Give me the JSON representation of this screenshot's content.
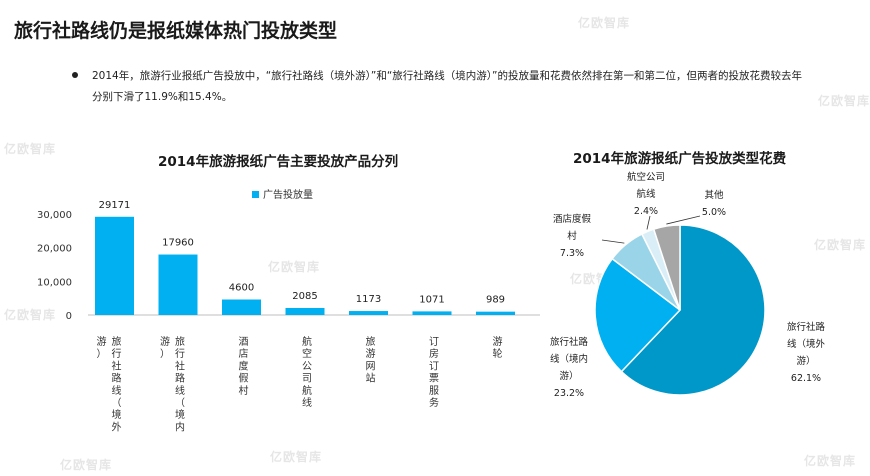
{
  "page": {
    "title": "旅行社路线仍是报纸媒体热门投放类型",
    "bullet": "2014年，旅游行业报纸广告投放中，“旅行社路线（境外游）”和“旅行社路线（境内游）”的投放量和花费依然排在第一和第二位，但两者的投放花费较去年分别下滑了11.9%和15.4%。",
    "accent_color": "#00b0f0"
  },
  "chart_data": [
    {
      "type": "bar",
      "title": "2014年旅游报纸广告主要投放产品分列",
      "legend": "广告投放量",
      "legend_position": "top",
      "categories": [
        "旅行社路线（境外游）",
        "旅行社路线（境内游）",
        "酒店度假村",
        "航空公司航线",
        "旅游网站",
        "订房订票服务",
        "游轮"
      ],
      "category_lines": [
        [
          "旅行社路线（境外",
          "游）"
        ],
        [
          "旅行社路线（境内",
          "游）"
        ],
        [
          "酒店度假村"
        ],
        [
          "航空公司航线"
        ],
        [
          "旅游网站"
        ],
        [
          "订房订票服务"
        ],
        [
          "游轮"
        ]
      ],
      "values": [
        29171,
        17960,
        4600,
        2085,
        1173,
        1071,
        989
      ],
      "value_labels": [
        "29171",
        "17960",
        "4600",
        "2085",
        "1173",
        "1071",
        "989"
      ],
      "yticks": [
        0,
        10000,
        20000,
        30000
      ],
      "ytick_labels": [
        "0",
        "10,000",
        "20,000",
        "30,000"
      ],
      "ylim": [
        0,
        30000
      ],
      "grid": false,
      "color": "#00b0f0"
    },
    {
      "type": "pie",
      "title": "2014年旅游报纸广告投放类型花费",
      "slices": [
        {
          "label": "旅行社路线（境外游）",
          "value": 62.1,
          "text": "62.1%",
          "color": "#0097c9",
          "label_lines": [
            "旅行社路",
            "线（境外",
            "游）"
          ]
        },
        {
          "label": "旅行社路线（境内游）",
          "value": 23.2,
          "text": "23.2%",
          "color": "#00b0f0",
          "label_lines": [
            "旅行社路",
            "线（境内",
            "游）"
          ]
        },
        {
          "label": "酒店度假村",
          "value": 7.3,
          "text": "7.3%",
          "color": "#99d4e8",
          "label_lines": [
            "酒店度假",
            "村"
          ]
        },
        {
          "label": "航空公司航线",
          "value": 2.4,
          "text": "2.4%",
          "color": "#d9eef6",
          "label_lines": [
            "航空公司",
            "航线"
          ]
        },
        {
          "label": "其他",
          "value": 5.0,
          "text": "5.0%",
          "color": "#a6a6a6",
          "label_lines": [
            "其他"
          ]
        }
      ]
    }
  ],
  "watermark": "亿欧智库"
}
